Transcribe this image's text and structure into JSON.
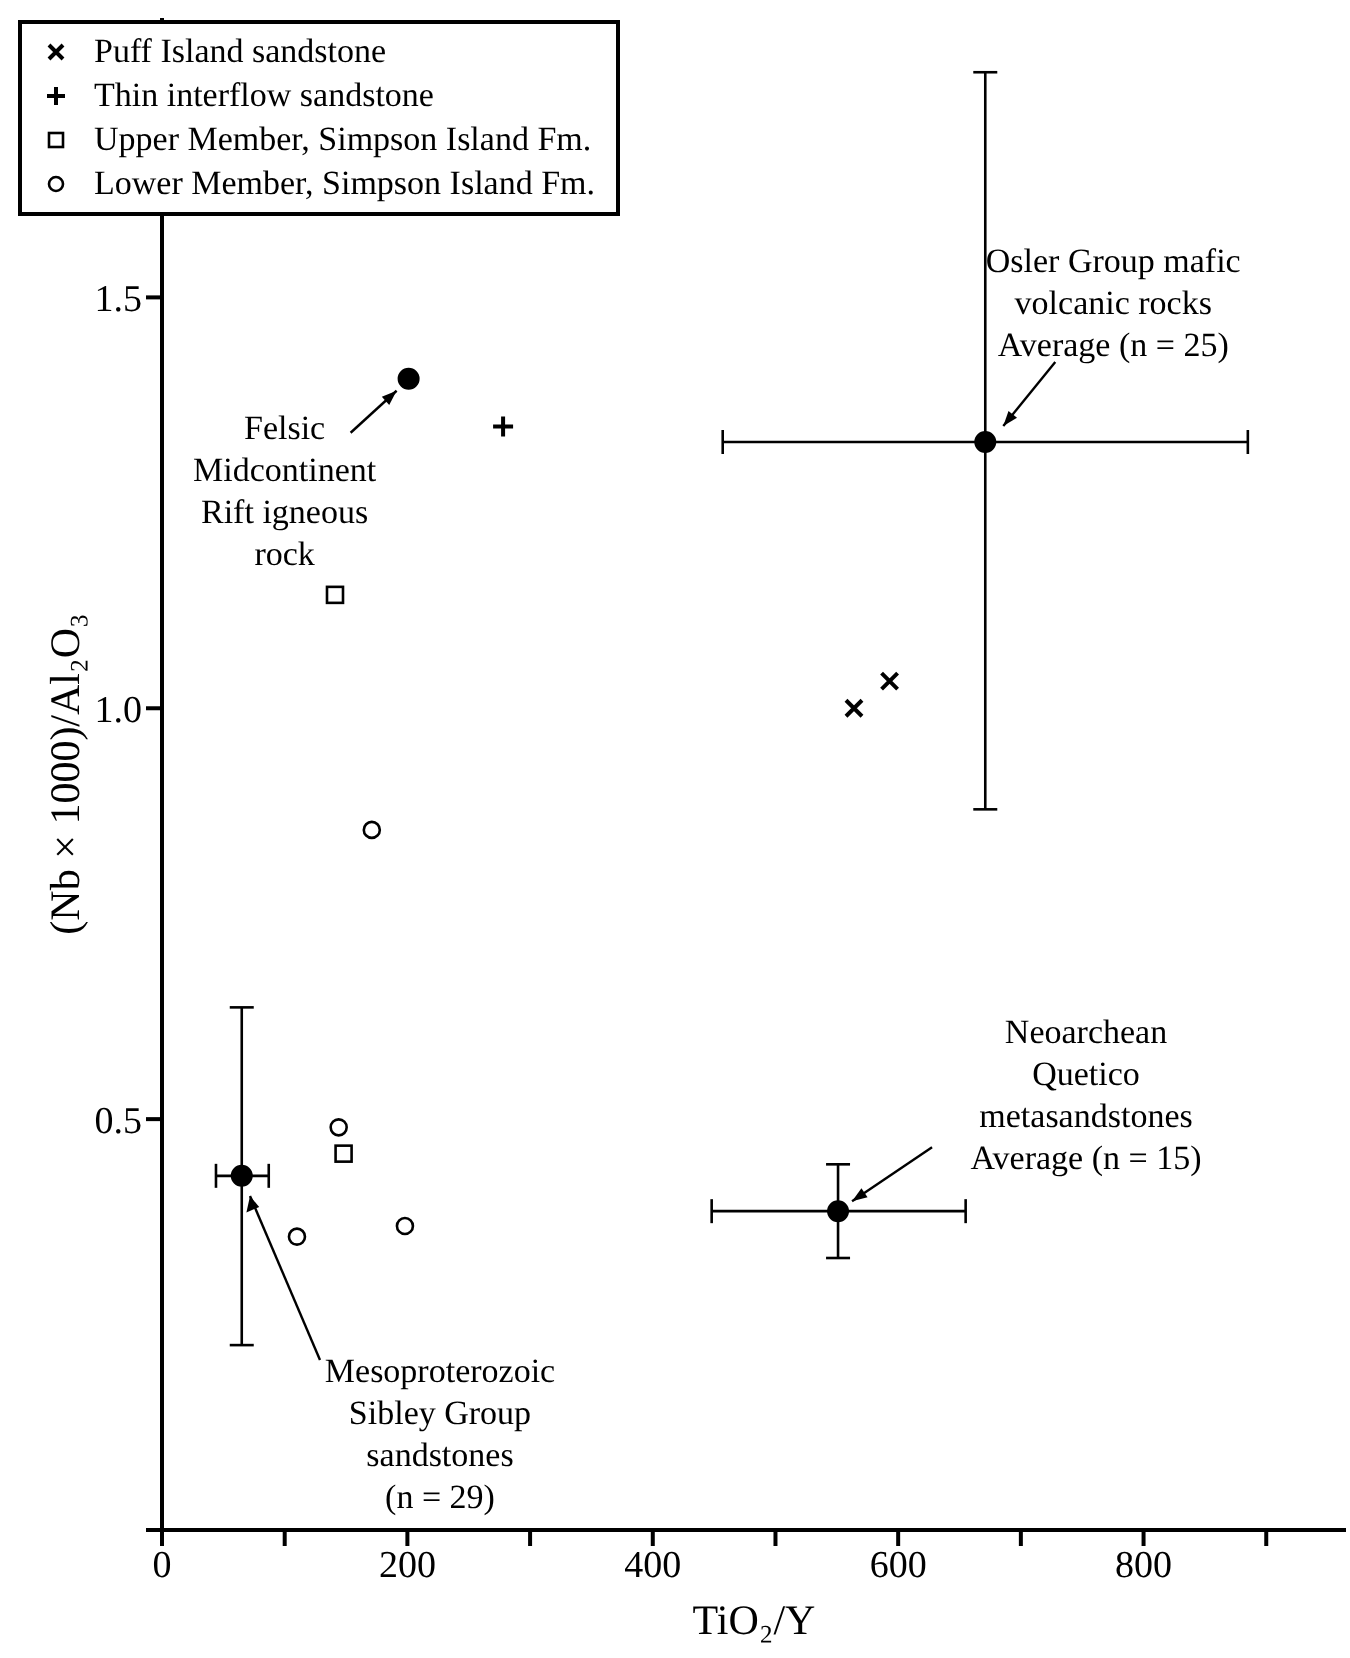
{
  "chart_data": {
    "type": "scatter",
    "xlabel": "TiO₂/Y",
    "ylabel": "(Nb × 1000)/Al₂O₃",
    "xlim": [
      0,
      965
    ],
    "ylim": [
      0,
      1.84
    ],
    "xticks": [
      0,
      {
        "value": 100,
        "label": null
      },
      200,
      {
        "value": 300,
        "label": null
      },
      400,
      {
        "value": 500,
        "label": null
      },
      600,
      {
        "value": 700,
        "label": null
      },
      800,
      {
        "value": 900,
        "label": null
      }
    ],
    "yticks": [
      {
        "value": 0,
        "label": null
      },
      0.5,
      {
        "value": 1,
        "label": "1.0"
      },
      1.5
    ],
    "grid": false,
    "legend": "top left",
    "series": [
      {
        "name": "Puff Island sandstone",
        "color": "#000000",
        "marker": "cross",
        "x": [
          564,
          593
        ],
        "values": [
          1.0,
          1.033
        ]
      },
      {
        "name": "Thin interflow sandstone",
        "color": "#000000",
        "marker": "plus",
        "x": [
          278
        ],
        "values": [
          1.343
        ]
      },
      {
        "name": "Upper Member, Simpson Island Fm.",
        "color": "#000000",
        "marker": "square",
        "x": [
          141,
          148
        ],
        "values": [
          1.138,
          0.458
        ]
      },
      {
        "name": "Lower Member, Simpson Island Fm.",
        "color": "#000000",
        "marker": "circle",
        "x": [
          171,
          144,
          110,
          198
        ],
        "values": [
          0.852,
          0.49,
          0.357,
          0.37
        ]
      },
      {
        "color": "#000000",
        "marker": "circle",
        "x": [
          201,
          671,
          551,
          65
        ],
        "values": [
          1.401,
          1.324,
          0.388,
          0.431
        ],
        "xerrors": [
          null,
          [
            457,
            885
          ],
          [
            448,
            655
          ],
          [
            44,
            87
          ]
        ],
        "errors": [
          null,
          [
            0.877,
            1.774
          ],
          [
            0.331,
            0.445
          ],
          [
            0.225,
            0.636
          ]
        ]
      }
    ],
    "annotations": [
      {
        "text": "Felsic\nMidcontinent\nRift igneous\nrock",
        "x": 201,
        "y": 1.401
      },
      {
        "text": "Osler Group mafic\nvolcanic rocks\nAverage (n = 25)",
        "x": 671,
        "y": 1.324
      },
      {
        "text": "Neoarchean\nQuetico\nmetasandstones\nAverage (n = 15)",
        "x": 551,
        "y": 0.388
      },
      "Mesoproterozoic\nSibley Group\nsandstones\n(n = 29)"
    ]
  }
}
